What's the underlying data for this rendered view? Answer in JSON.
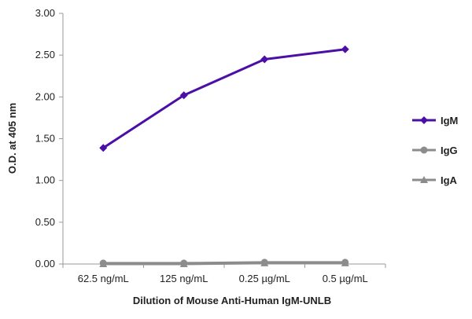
{
  "chart_data": {
    "type": "line",
    "title": "",
    "xlabel": "Dilution of Mouse Anti-Human IgM-UNLB",
    "ylabel": "O.D. at 405 nm",
    "categories": [
      "62.5 ng/mL",
      "125 ng/mL",
      "0.25 µg/mL",
      "0.5 µg/mL"
    ],
    "ylim": [
      0,
      3
    ],
    "yticks": [
      "0.00",
      "0.50",
      "1.00",
      "1.50",
      "2.00",
      "2.50",
      "3.00"
    ],
    "grid": false,
    "legend_position": "right",
    "series": [
      {
        "name": "IgM",
        "values": [
          1.39,
          2.02,
          2.45,
          2.57
        ],
        "color": "#4b0fa8",
        "marker": "diamond"
      },
      {
        "name": "IgG",
        "values": [
          0.01,
          0.01,
          0.02,
          0.02
        ],
        "color": "#8c8c8c",
        "marker": "circle"
      },
      {
        "name": "IgA",
        "values": [
          0.0,
          0.0,
          0.01,
          0.01
        ],
        "color": "#8c8c8c",
        "marker": "triangle"
      }
    ]
  }
}
